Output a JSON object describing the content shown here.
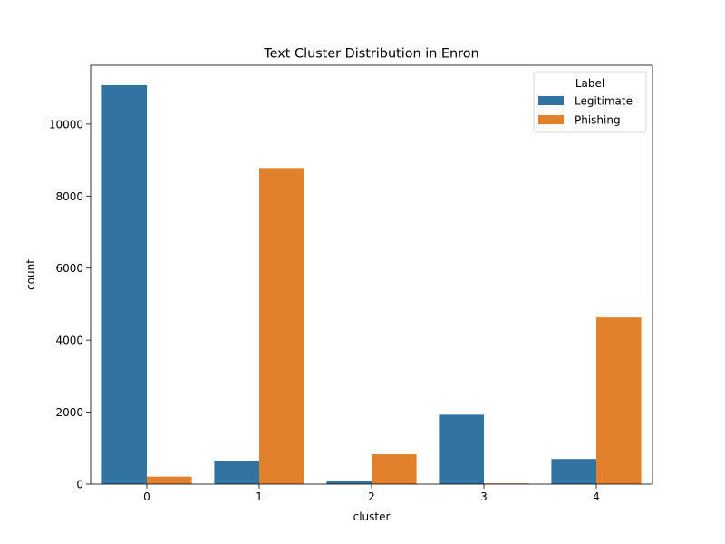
{
  "chart_data": {
    "type": "bar",
    "title": "Text Cluster Distribution in Enron",
    "xlabel": "cluster",
    "ylabel": "count",
    "categories": [
      "0",
      "1",
      "2",
      "3",
      "4"
    ],
    "series": [
      {
        "name": "Legitimate",
        "color": "#3274a1",
        "values": [
          11080,
          650,
          100,
          1930,
          700
        ]
      },
      {
        "name": "Phishing",
        "color": "#e1812c",
        "values": [
          210,
          8780,
          830,
          20,
          4630
        ]
      }
    ],
    "ylim": [
      0,
      11634
    ],
    "yticks": [
      0,
      2000,
      4000,
      6000,
      8000,
      10000
    ],
    "legend": {
      "title": "Label",
      "position": "top-right"
    },
    "grid": false
  }
}
